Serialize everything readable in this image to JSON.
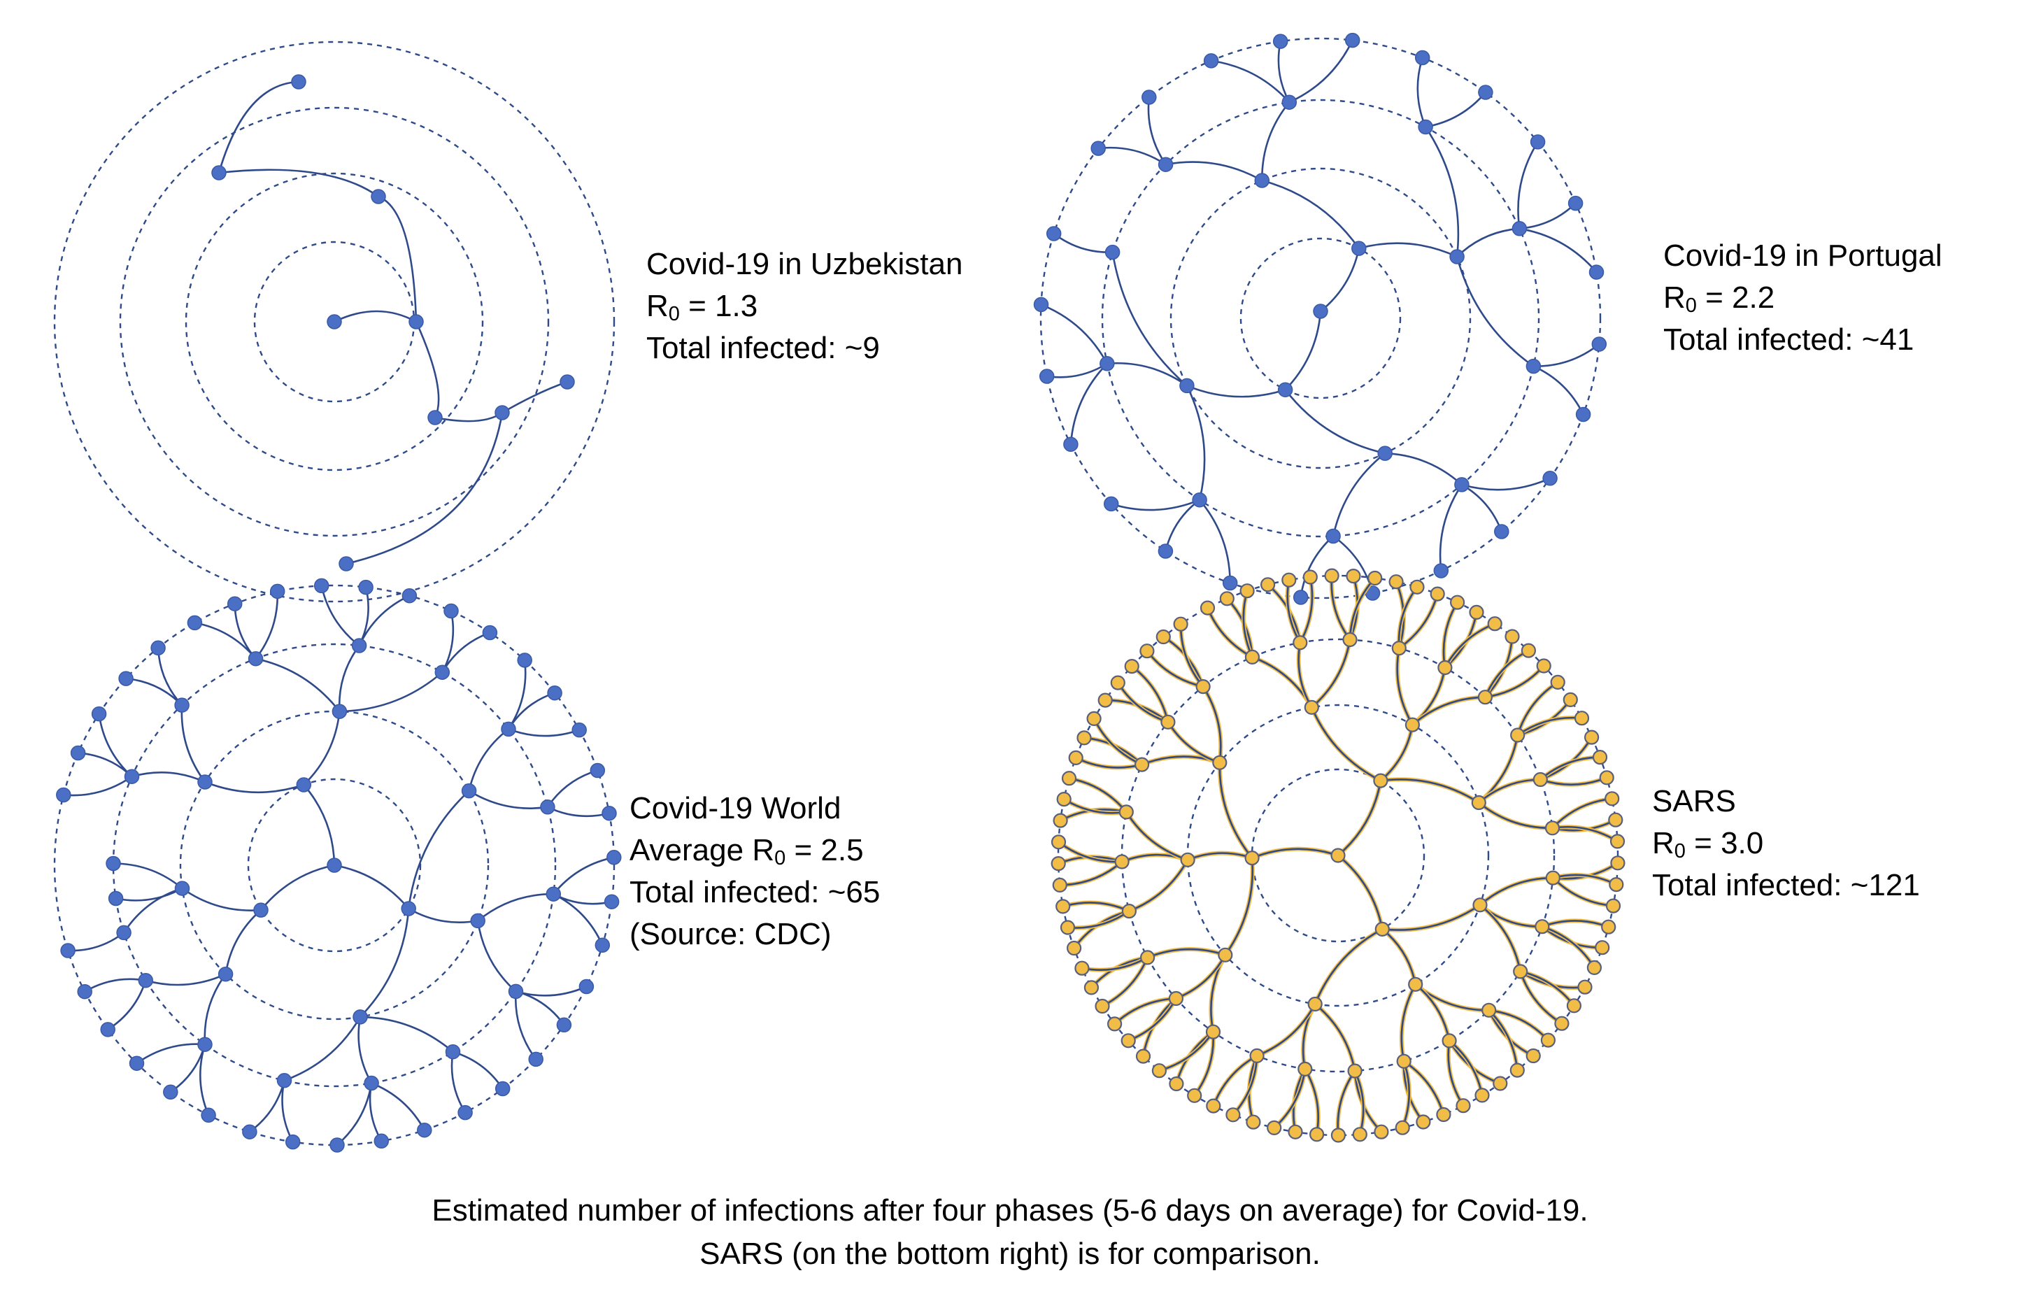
{
  "panels": [
    {
      "id": "uzbekistan",
      "title": "Covid-19 in Uzbekistan",
      "r_prefix": "R",
      "r_sub": "0",
      "r_suffix": " = 1.3",
      "total": "Total infected: ~9",
      "node_count": 9,
      "style": "blue"
    },
    {
      "id": "portugal",
      "title": "Covid-19 in Portugal",
      "r_prefix": "R",
      "r_sub": "0",
      "r_suffix": " = 2.2",
      "total": "Total infected: ~41",
      "node_count": 41,
      "style": "blue"
    },
    {
      "id": "world",
      "title": "Covid-19 World",
      "r_prefix": "Average R",
      "r_sub": "0",
      "r_suffix": " = 2.5",
      "total": "Total infected: ~65",
      "source": "(Source: CDC)",
      "node_count": 65,
      "style": "blue"
    },
    {
      "id": "sars",
      "title": "SARS",
      "r_prefix": "R",
      "r_sub": "0",
      "r_suffix": " = 3.0",
      "total": "Total infected: ~121",
      "node_count": 121,
      "style": "yellow"
    }
  ],
  "caption": {
    "line1": "Estimated number of infections after four phases (5-6 days on average) for Covid-19.",
    "line2": "SARS (on the bottom right) is for comparison."
  },
  "colors": {
    "ring": "#2f4a8a",
    "edge": "#2f4a8a",
    "node_blue": "#4a6fc4",
    "node_blue_stroke": "#3a5aa8",
    "node_yellow": "#f2bd46",
    "node_yellow_stroke": "#5a5f7a",
    "edge_yellow_glow": "#f2bd46"
  }
}
